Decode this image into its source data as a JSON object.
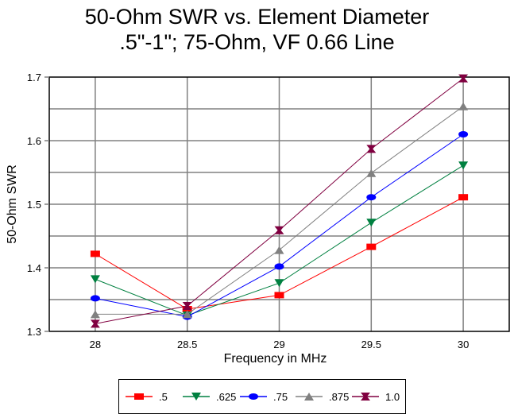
{
  "chart_data": {
    "type": "line",
    "title": "50-Ohm SWR vs. Element Diameter",
    "subtitle": ".5\"-1\"; 75-Ohm, VF 0.66 Line",
    "xlabel": "Frequency in MHz",
    "ylabel": "50-Ohm SWR",
    "x": [
      28,
      28.5,
      29,
      29.5,
      30
    ],
    "x_tick_labels": [
      "28",
      "28.5",
      "29",
      "29.5",
      "30"
    ],
    "y_tick_labels": [
      "1.3",
      "1.4",
      "1.5",
      "1.6",
      "1.7"
    ],
    "y_ticks": [
      1.3,
      1.4,
      1.5,
      1.6,
      1.7
    ],
    "xlim": [
      27.75,
      30.25
    ],
    "ylim": [
      1.3,
      1.7
    ],
    "grid": true,
    "legend_position": "bottom",
    "series": [
      {
        "name": ".5",
        "color": "#ff0000",
        "marker": "square",
        "values": [
          1.422,
          1.335,
          1.357,
          1.433,
          1.511
        ]
      },
      {
        "name": ".625",
        "color": "#008040",
        "marker": "triangle-down",
        "values": [
          1.382,
          1.325,
          1.376,
          1.471,
          1.561
        ]
      },
      {
        "name": ".75",
        "color": "#0000ff",
        "marker": "circle",
        "values": [
          1.352,
          1.323,
          1.402,
          1.511,
          1.61
        ]
      },
      {
        "name": ".875",
        "color": "#808080",
        "marker": "triangle-up",
        "values": [
          1.327,
          1.327,
          1.428,
          1.549,
          1.654
        ]
      },
      {
        "name": "1.0",
        "color": "#800040",
        "marker": "hourglass",
        "values": [
          1.312,
          1.34,
          1.459,
          1.587,
          1.698
        ]
      }
    ]
  }
}
